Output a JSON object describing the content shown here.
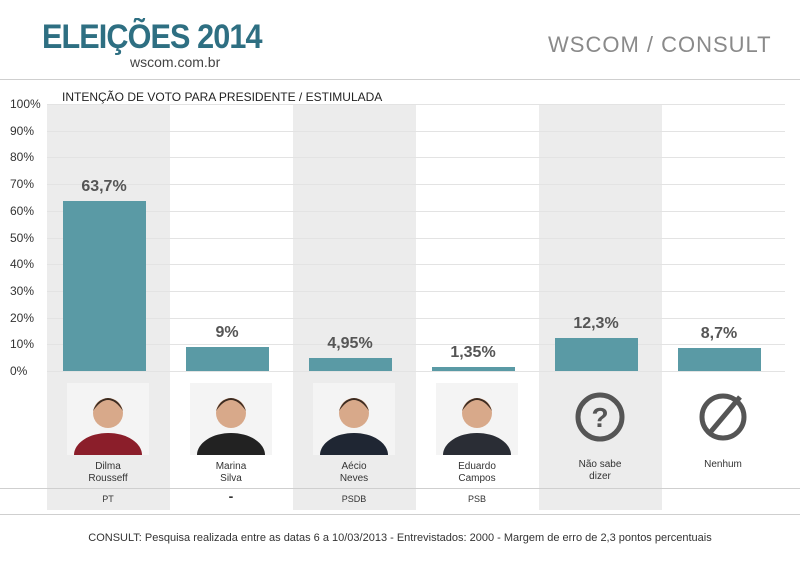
{
  "header": {
    "title": "ELEIÇÕES 2014",
    "url": "wscom.com.br",
    "source": "WSCOM / CONSULT"
  },
  "colors": {
    "title": "#2e6f82",
    "bar": "#5a9aa5",
    "stripe": "#ececec"
  },
  "chart_data": {
    "type": "bar",
    "title": "INTENÇÃO DE VOTO PARA PRESIDENTE / ESTIMULADA",
    "ylim": [
      0,
      100
    ],
    "yticks": [
      "100%",
      "90%",
      "80%",
      "70%",
      "60%",
      "50%",
      "40%",
      "30%",
      "20%",
      "10%",
      "0%"
    ],
    "categories": [
      "Dilma Rousseff",
      "Marina Silva",
      "Aécio Neves",
      "Eduardo Campos",
      "Não sabe dizer",
      "Nenhum"
    ],
    "values": [
      63.7,
      9,
      4.95,
      1.35,
      12.3,
      8.7
    ],
    "value_labels": [
      "63,7%",
      "9%",
      "4,95%",
      "1,35%",
      "12,3%",
      "8,7%"
    ],
    "candidates": [
      {
        "line1": "Dilma",
        "line2": "Rousseff",
        "party": "PT",
        "icon": "photo"
      },
      {
        "line1": "Marina",
        "line2": "Silva",
        "party": "-",
        "icon": "photo"
      },
      {
        "line1": "Aécio",
        "line2": "Neves",
        "party": "PSDB",
        "icon": "photo"
      },
      {
        "line1": "Eduardo",
        "line2": "Campos",
        "party": "PSB",
        "icon": "photo"
      },
      {
        "line1": "Não sabe",
        "line2": "dizer",
        "party": "",
        "icon": "question-icon"
      },
      {
        "line1": "Nenhum",
        "line2": "",
        "party": "",
        "icon": "none-icon"
      }
    ],
    "grid": true
  },
  "footer": {
    "note": "CONSULT: Pesquisa realizada entre as datas 6 a 10/03/2013 - Entrevistados: 2000 - Margem de erro de 2,3 pontos percentuais"
  }
}
